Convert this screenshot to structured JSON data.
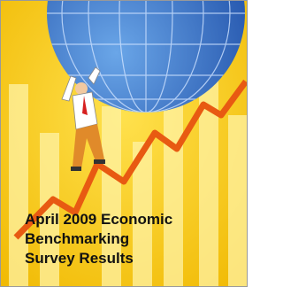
{
  "cover": {
    "title_lines": [
      "April 2009 Economic",
      "Benchmarking",
      "Survey Results"
    ]
  }
}
